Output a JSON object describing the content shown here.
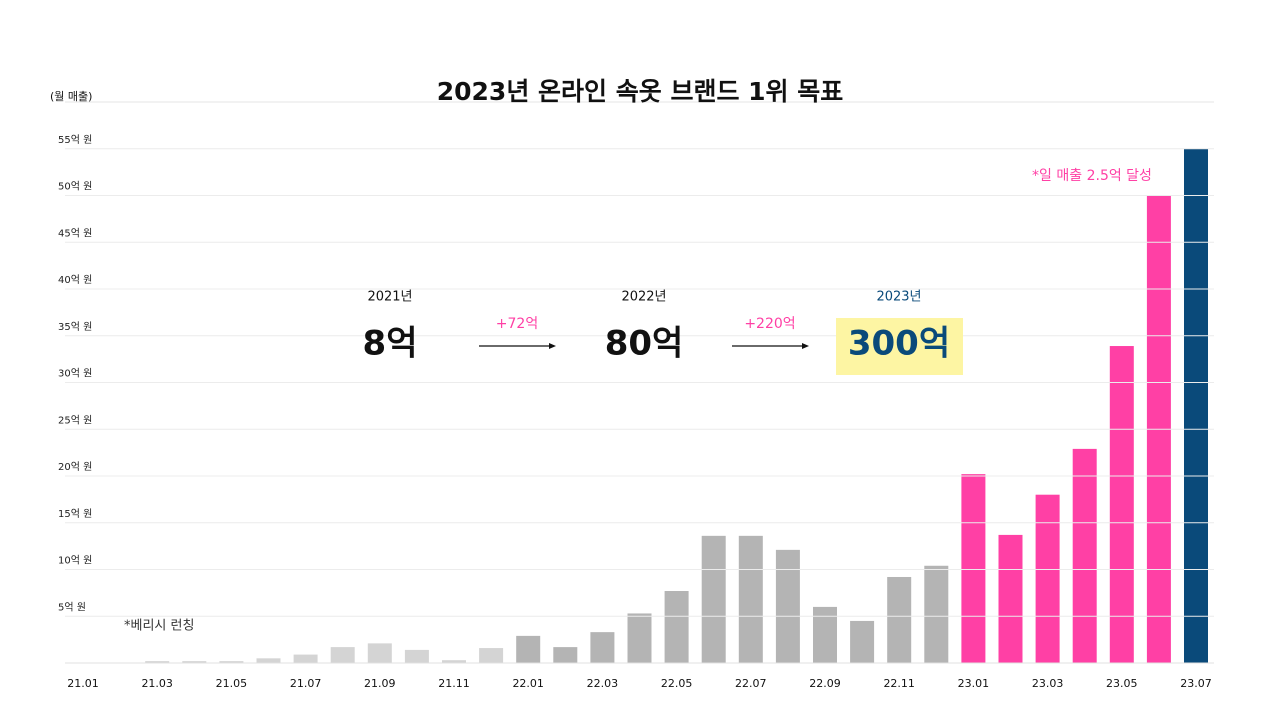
{
  "chart_data": {
    "type": "bar",
    "title": "2023년 온라인 속옷 브랜드 1위 목표",
    "y_label": "(월 매출)",
    "categories": [
      "21.01",
      null,
      "21.03",
      null,
      "21.05",
      null,
      "21.07",
      null,
      "21.09",
      null,
      "21.11",
      null,
      "22.01",
      null,
      "22.03",
      null,
      "22.05",
      null,
      "22.07",
      null,
      "22.09",
      null,
      "22.11",
      null,
      "23.01",
      null,
      "23.03",
      null,
      "23.05",
      null,
      "23.07"
    ],
    "values": [
      0,
      0,
      0.2,
      0.2,
      0.2,
      0.5,
      0.9,
      1.7,
      2.1,
      1.4,
      0.3,
      1.6,
      2.9,
      1.7,
      3.3,
      5.3,
      7.7,
      13.6,
      13.6,
      12.1,
      6.0,
      4.5,
      9.2,
      10.4,
      20.2,
      13.7,
      18.0,
      22.9,
      33.9,
      50.0,
      55.0
    ],
    "colors": [
      "#d4d4d4",
      "#d4d4d4",
      "#d4d4d4",
      "#d4d4d4",
      "#d4d4d4",
      "#d4d4d4",
      "#d4d4d4",
      "#d4d4d4",
      "#d4d4d4",
      "#d4d4d4",
      "#d4d4d4",
      "#d4d4d4",
      "#b4b4b4",
      "#b4b4b4",
      "#b4b4b4",
      "#b4b4b4",
      "#b4b4b4",
      "#b4b4b4",
      "#b4b4b4",
      "#b4b4b4",
      "#b4b4b4",
      "#b4b4b4",
      "#b4b4b4",
      "#b4b4b4",
      "#ff40a5",
      "#ff40a5",
      "#ff40a5",
      "#ff40a5",
      "#ff40a5",
      "#ff40a5",
      "#0a4a7a"
    ],
    "ylim": [
      0,
      60
    ],
    "yticks": [
      {
        "value": 5,
        "label": "5억 원"
      },
      {
        "value": 10,
        "label": "10억 원"
      },
      {
        "value": 15,
        "label": "15억 원"
      },
      {
        "value": 20,
        "label": "20억 원"
      },
      {
        "value": 25,
        "label": "25억 원"
      },
      {
        "value": 30,
        "label": "30억 원"
      },
      {
        "value": 35,
        "label": "35억 원"
      },
      {
        "value": 40,
        "label": "40억 원"
      },
      {
        "value": 45,
        "label": "45억 원"
      },
      {
        "value": 50,
        "label": "50억 원"
      },
      {
        "value": 55,
        "label": "55억 원"
      }
    ],
    "grid": true,
    "annotations": {
      "launch": "*베리시 런칭",
      "daily": "*일 매출 2.5억 달성"
    },
    "summary": {
      "years": [
        "2021년",
        "2022년",
        "2023년"
      ],
      "amounts": [
        "8억",
        "80억",
        "300억"
      ],
      "increases": [
        "+72억",
        "+220억"
      ]
    }
  }
}
